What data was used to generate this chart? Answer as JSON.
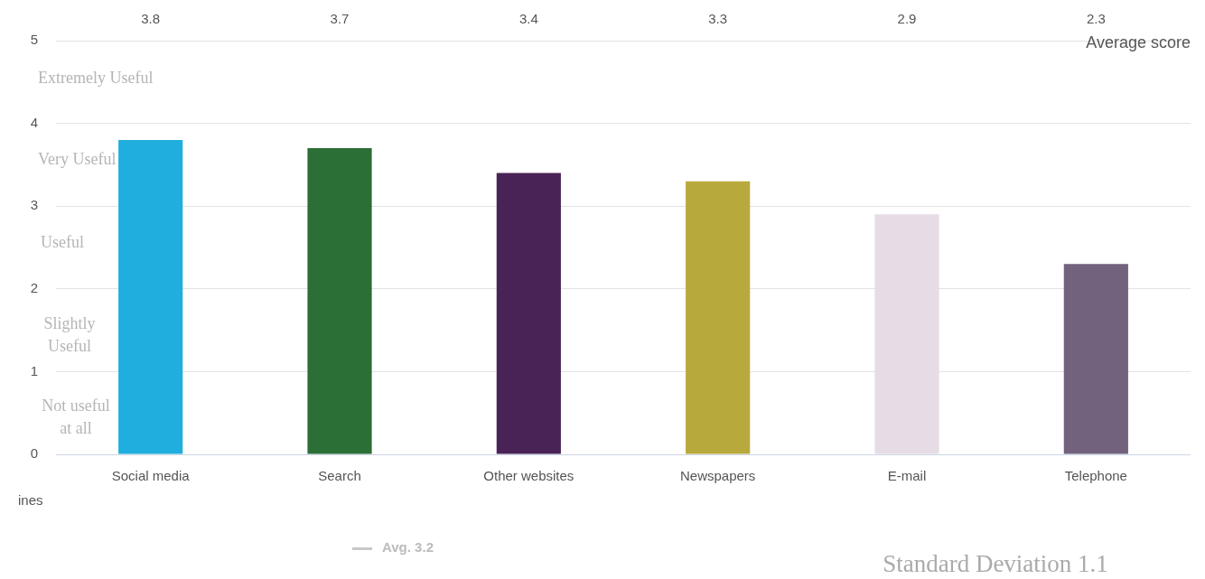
{
  "chart_data": {
    "type": "bar",
    "ylabel": "Average score",
    "categories": [
      "Social media",
      "Search",
      "Other websites",
      "Newspapers",
      "E-mail",
      "Telephone"
    ],
    "values": [
      3.8,
      3.7,
      3.4,
      3.3,
      2.9,
      2.3
    ],
    "colors": [
      "#20aedf",
      "#2b6e36",
      "#4a2356",
      "#b8a93c",
      "#e6dce5",
      "#72627e"
    ],
    "ylim": [
      0,
      5
    ],
    "yticks": [
      0,
      1,
      2,
      3,
      4,
      5
    ],
    "grid": "y",
    "data_labels": true,
    "legend": false,
    "annotations": [
      "Extremely Useful",
      "Very Useful",
      "Useful",
      "Slightly Useful",
      "Not useful at all",
      "ines",
      "Avg. 3.2",
      "Standard Deviation 1.1"
    ]
  }
}
